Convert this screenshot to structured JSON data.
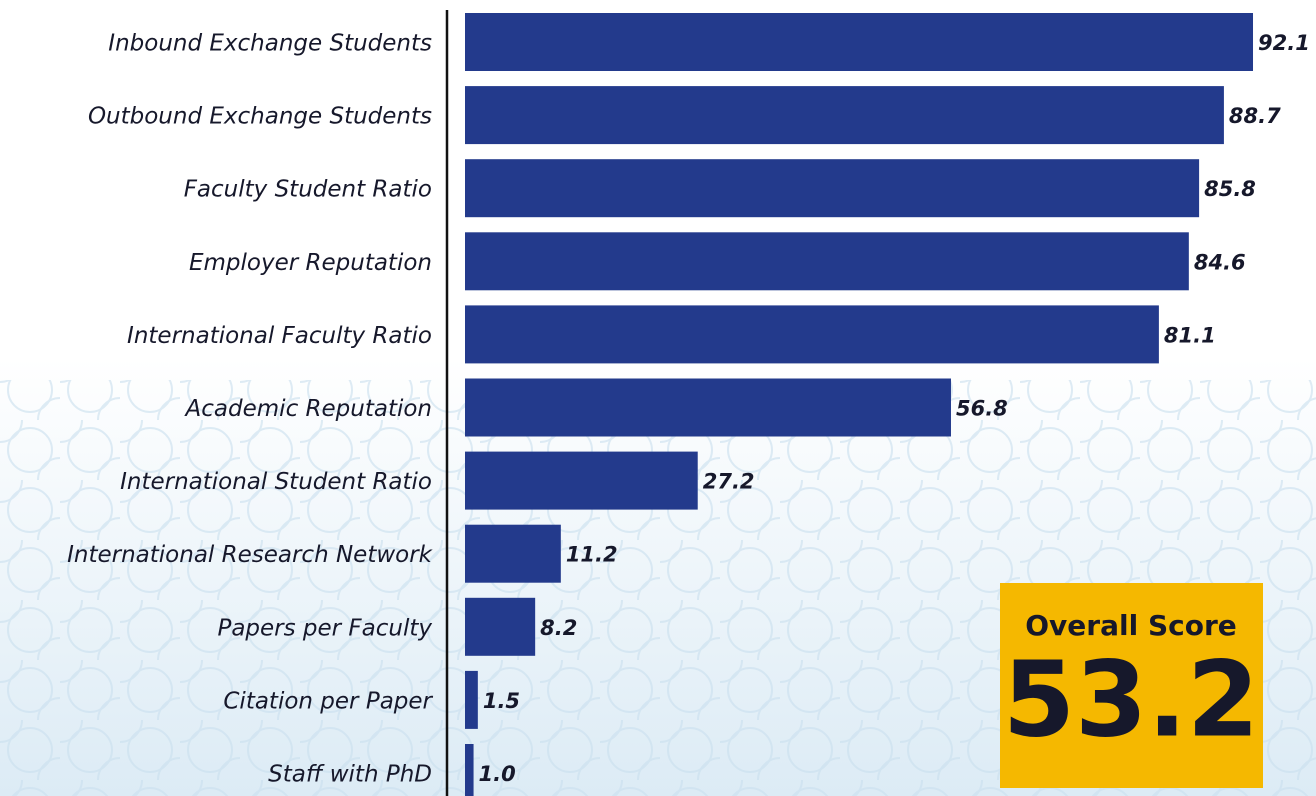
{
  "chart_data": {
    "type": "bar",
    "orientation": "horizontal",
    "categories": [
      "Inbound Exchange Students",
      "Outbound Exchange Students",
      "Faculty Student Ratio",
      "Employer Reputation",
      "International Faculty Ratio",
      "Academic Reputation",
      "International Student Ratio",
      "International Research Network",
      "Papers per Faculty",
      "Citation per Paper",
      "Staff with PhD"
    ],
    "values": [
      92.1,
      88.7,
      85.8,
      84.6,
      81.1,
      56.8,
      27.2,
      11.2,
      8.2,
      1.5,
      1.0
    ],
    "value_labels": [
      "92.1",
      "88.7",
      "85.8",
      "84.6",
      "81.1",
      "56.8",
      "27.2",
      "11.2",
      "8.2",
      "1.5",
      "1.0"
    ],
    "color": "#233a8c",
    "xlim": [
      0,
      100
    ],
    "score_label": "Overall Score",
    "score": 53.2
  }
}
